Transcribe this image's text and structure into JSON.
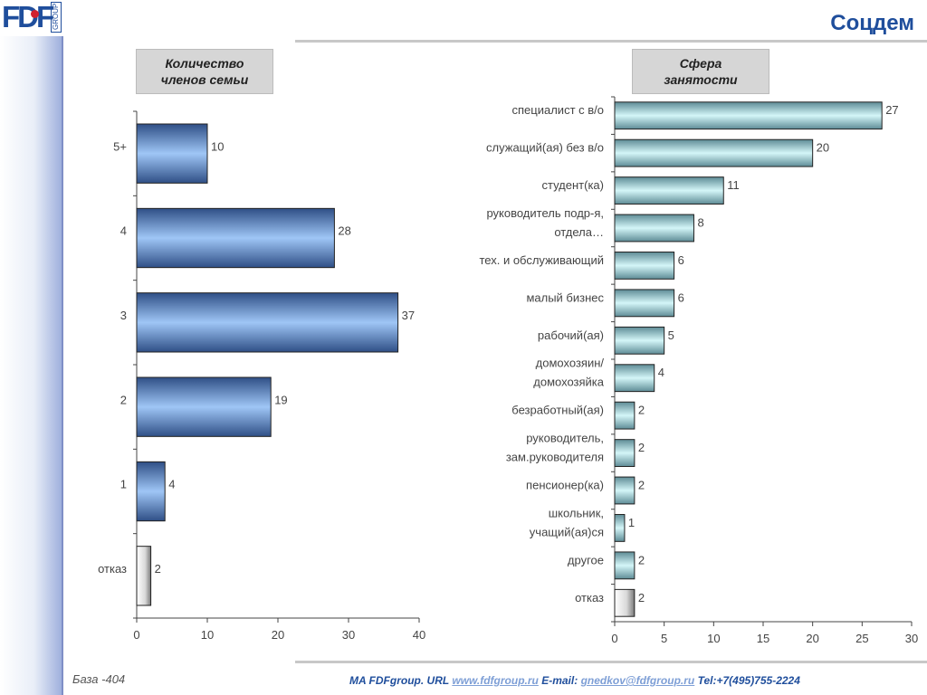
{
  "header": {
    "logo_text": "FDF",
    "logo_sub": "GROUP",
    "title": "Соцдем"
  },
  "colors": {
    "brand": "#1f4e9c",
    "bar_blue": "#8fb8f0",
    "bar_cyan": "#c4eef0",
    "bar_grey": "#d9d9d9"
  },
  "chart_data": [
    {
      "type": "bar",
      "orientation": "horizontal",
      "title": "Количество членов семьи",
      "categories": [
        "5+",
        "4",
        "3",
        "2",
        "1",
        "отказ"
      ],
      "values": [
        10,
        28,
        37,
        19,
        4,
        2
      ],
      "xlim": [
        0,
        40
      ],
      "xticks": [
        "0",
        "10",
        "20",
        "30",
        "40"
      ],
      "grid": false
    },
    {
      "type": "bar",
      "orientation": "horizontal",
      "title": "Сфера занятости",
      "categories": [
        "специалист с в/о",
        "служащий(ая) без в/о",
        "студент(ка)",
        "руководитель подр-я, отдела…",
        "тех. и обслуживающий",
        "малый бизнес",
        "рабочий(ая)",
        "домохозяин/ домохозяйка",
        "безработный(ая)",
        "руководитель, зам.руководителя",
        "пенсионер(ка)",
        "школьник, учащий(ая)ся",
        "другое",
        "отказ"
      ],
      "values": [
        27,
        20,
        11,
        8,
        6,
        6,
        5,
        4,
        2,
        2,
        2,
        1,
        2,
        2
      ],
      "xlim": [
        0,
        30
      ],
      "xticks": [
        "0",
        "5",
        "10",
        "15",
        "20",
        "25",
        "30"
      ],
      "grid": false
    }
  ],
  "footer": {
    "base": "База -404",
    "prefix": "MA FDFgroup. URL ",
    "url": "www.fdfgroup.ru",
    "email_label": " E-mail: ",
    "email": "gnedkov@fdfgroup.ru",
    "tel": " Tel:+7(495)755-2224"
  }
}
